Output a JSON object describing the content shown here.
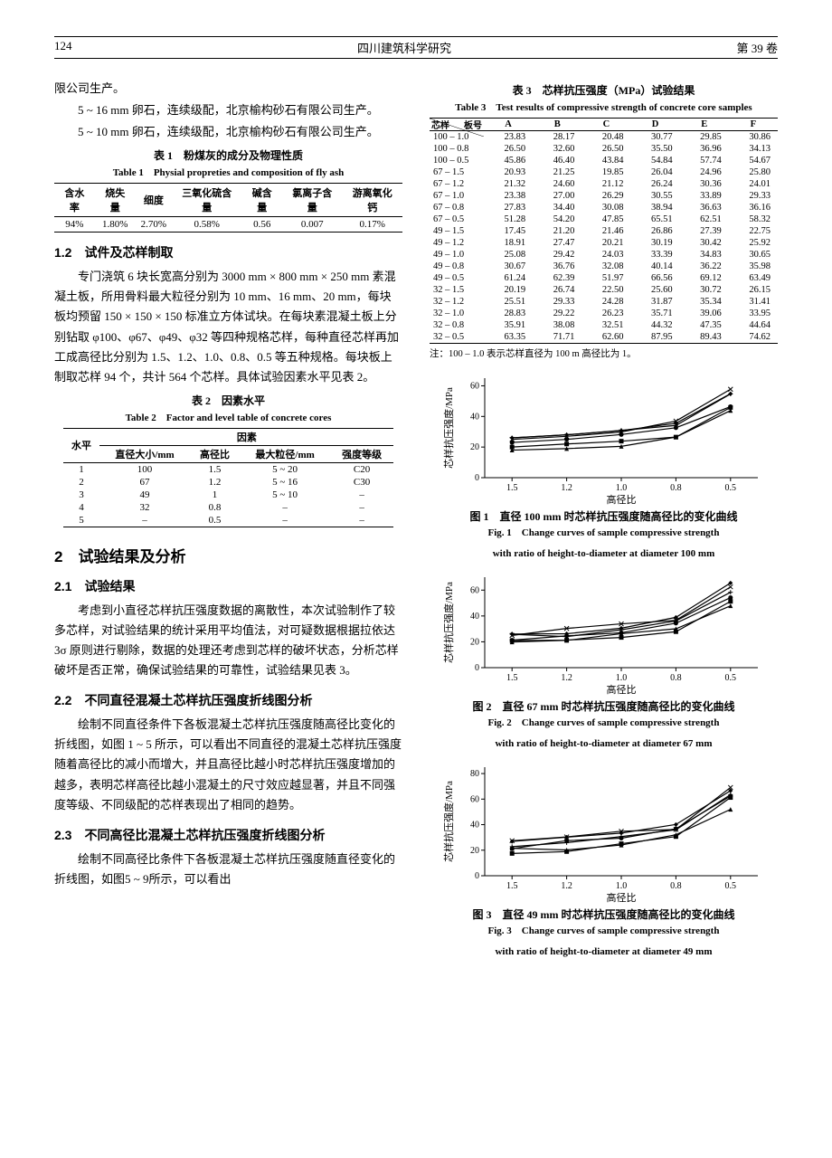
{
  "header": {
    "page_no": "124",
    "journal": "四川建筑科学研究",
    "volume": "第 39 卷"
  },
  "left": {
    "p1": "限公司生产。",
    "p2": "5 ~ 16 mm 卵石，连续级配，北京榆构砂石有限公司生产。",
    "p3": "5 ~ 10 mm 卵石，连续级配，北京榆构砂石有限公司生产。",
    "tbl1": {
      "caption_cn": "表 1　粉煤灰的成分及物理性质",
      "caption_en": "Table 1　Physial propreties and composition of fly ash",
      "headers": [
        "含水率",
        "烧失量",
        "细度",
        "三氧化硫含量",
        "碱含量",
        "氯离子含量",
        "游离氧化钙"
      ],
      "row": [
        "94%",
        "1.80%",
        "2.70%",
        "0.58%",
        "0.56",
        "0.007",
        "0.17%"
      ]
    },
    "h12": "1.2　试件及芯样制取",
    "p4": "专门浇筑 6 块长宽高分别为 3000 mm × 800 mm × 250 mm 素混凝土板，所用骨料最大粒径分别为 10 mm、16 mm、20 mm，每块板均预留 150 × 150 × 150 标准立方体试块。在每块素混凝土板上分别钻取 φ100、φ67、φ49、φ32 等四种规格芯样，每种直径芯样再加工成高径比分别为 1.5、1.2、1.0、0.8、0.5 等五种规格。每块板上制取芯样 94 个，共计 564 个芯样。具体试验因素水平见表 2。",
    "tbl2": {
      "caption_cn": "表 2　因素水平",
      "caption_en": "Table 2　Factor and level table of concrete cores",
      "level_header": "水平",
      "factor_header": "因素",
      "cols": [
        "直径大小/mm",
        "高径比",
        "最大粒径/mm",
        "强度等级"
      ],
      "rows": [
        [
          "1",
          "100",
          "1.5",
          "5 ~ 20",
          "C20"
        ],
        [
          "2",
          "67",
          "1.2",
          "5 ~ 16",
          "C30"
        ],
        [
          "3",
          "49",
          "1",
          "5 ~ 10",
          "–"
        ],
        [
          "4",
          "32",
          "0.8",
          "–",
          "–"
        ],
        [
          "5",
          "–",
          "0.5",
          "–",
          "–"
        ]
      ]
    },
    "h2": "2　试验结果及分析",
    "h21": "2.1　试验结果",
    "p5": "考虑到小直径芯样抗压强度数据的离散性，本次试验制作了较多芯样，对试验结果的统计采用平均值法，对可疑数据根据拉依达 3σ 原则进行剔除，数据的处理还考虑到芯样的破坏状态，分析芯样破坏是否正常，确保试验结果的可靠性，试验结果见表 3。",
    "h22": "2.2　不同直径混凝土芯样抗压强度折线图分析",
    "p6": "绘制不同直径条件下各板混凝土芯样抗压强度随高径比变化的折线图，如图 1 ~ 5 所示，可以看出不同直径的混凝土芯样抗压强度随着高径比的减小而增大，并且高径比越小时芯样抗压强度增加的越多，表明芯样高径比越小混凝土的尺寸效应越显著，并且不同强度等级、不同级配的芯样表现出了相同的趋势。",
    "h23": "2.3　不同高径比混凝土芯样抗压强度折线图分析",
    "p7": "绘制不同高径比条件下各板混凝土芯样抗压强度随直径变化的折线图，如图5 ~ 9所示，可以看出"
  },
  "right": {
    "tbl3": {
      "caption_cn": "表 3　芯样抗压强度（MPa）试验结果",
      "caption_en": "Table 3　Test results of compressive strength of concrete core samples",
      "diag_row": "芯样",
      "diag_col": "板号",
      "cols": [
        "A",
        "B",
        "C",
        "D",
        "E",
        "F"
      ],
      "rows": [
        [
          "100 – 1.0",
          "23.83",
          "28.17",
          "20.48",
          "30.77",
          "29.85",
          "30.86"
        ],
        [
          "100 – 0.8",
          "26.50",
          "32.60",
          "26.50",
          "35.50",
          "36.96",
          "34.13"
        ],
        [
          "100 – 0.5",
          "45.86",
          "46.40",
          "43.84",
          "54.84",
          "57.74",
          "54.67"
        ],
        [
          "67 – 1.5",
          "20.93",
          "21.25",
          "19.85",
          "26.04",
          "24.96",
          "25.80"
        ],
        [
          "67 – 1.2",
          "21.32",
          "24.60",
          "21.12",
          "26.24",
          "30.36",
          "24.01"
        ],
        [
          "67 – 1.0",
          "23.38",
          "27.00",
          "26.29",
          "30.55",
          "33.89",
          "29.33"
        ],
        [
          "67 – 0.8",
          "27.83",
          "34.40",
          "30.08",
          "38.94",
          "36.63",
          "36.16"
        ],
        [
          "67 – 0.5",
          "51.28",
          "54.20",
          "47.85",
          "65.51",
          "62.51",
          "58.32"
        ],
        [
          "49 – 1.5",
          "17.45",
          "21.20",
          "21.46",
          "26.86",
          "27.39",
          "22.75"
        ],
        [
          "49 – 1.2",
          "18.91",
          "27.47",
          "20.21",
          "30.19",
          "30.42",
          "25.92"
        ],
        [
          "49 – 1.0",
          "25.08",
          "29.42",
          "24.03",
          "33.39",
          "34.83",
          "30.65"
        ],
        [
          "49 – 0.8",
          "30.67",
          "36.76",
          "32.08",
          "40.14",
          "36.22",
          "35.98"
        ],
        [
          "49 – 0.5",
          "61.24",
          "62.39",
          "51.97",
          "66.56",
          "69.12",
          "63.49"
        ],
        [
          "32 – 1.5",
          "20.19",
          "26.74",
          "22.50",
          "25.60",
          "30.72",
          "26.15"
        ],
        [
          "32 – 1.2",
          "25.51",
          "29.33",
          "24.28",
          "31.87",
          "35.34",
          "31.41"
        ],
        [
          "32 – 1.0",
          "28.83",
          "29.22",
          "26.23",
          "35.71",
          "39.06",
          "33.95"
        ],
        [
          "32 – 0.8",
          "35.91",
          "38.08",
          "32.51",
          "44.32",
          "47.35",
          "44.64"
        ],
        [
          "32 – 0.5",
          "63.35",
          "71.71",
          "62.60",
          "87.95",
          "89.43",
          "74.62"
        ]
      ],
      "note": "注：100 – 1.0 表示芯样直径为 100 m 高径比为 1。"
    },
    "charts": {
      "xlabels": [
        "1.5",
        "1.2",
        "1.0",
        "0.8",
        "0.5"
      ],
      "xaxis_title": "高径比",
      "yaxis_title": "芯样抗压强度/MPa",
      "axis_color": "#000000",
      "series_style": {
        "line_width": 1.2,
        "marker_size": 3,
        "colors": [
          "#000",
          "#000",
          "#000",
          "#000",
          "#000",
          "#000"
        ]
      },
      "fig1": {
        "caption_cn": "图 1　直径 100 mm 时芯样抗压强度随高径比的变化曲线",
        "caption_en1": "Fig. 1　Change curves of sample compressive strength",
        "caption_en2": "with ratio of height-to-diameter at diameter 100 mm",
        "ylim": [
          0,
          65
        ],
        "yticks": [
          0,
          20,
          40,
          60
        ],
        "series": {
          "A": [
            20,
            22,
            23.83,
            26.5,
            45.86
          ],
          "B": [
            23,
            25,
            28.17,
            32.6,
            46.4
          ],
          "C": [
            18,
            19,
            20.48,
            26.5,
            43.84
          ],
          "D": [
            26,
            28,
            30.77,
            35.5,
            54.84
          ],
          "E": [
            25,
            27,
            29.85,
            36.96,
            57.74
          ],
          "F": [
            26,
            28,
            30.86,
            34.13,
            54.67
          ]
        }
      },
      "fig2": {
        "caption_cn": "图 2　直径 67 mm 时芯样抗压强度随高径比的变化曲线",
        "caption_en1": "Fig. 2　Change curves of sample compressive strength",
        "caption_en2": "with ratio of height-to-diameter at diameter 67 mm",
        "ylim": [
          0,
          70
        ],
        "yticks": [
          0,
          20,
          40,
          60
        ],
        "series": {
          "A": [
            20.93,
            21.32,
            23.38,
            27.83,
            51.28
          ],
          "B": [
            21.25,
            24.6,
            27.0,
            34.4,
            54.2
          ],
          "C": [
            19.85,
            21.12,
            26.29,
            30.08,
            47.85
          ],
          "D": [
            26.04,
            26.24,
            30.55,
            38.94,
            65.51
          ],
          "E": [
            24.96,
            30.36,
            33.89,
            36.63,
            62.51
          ],
          "F": [
            25.8,
            24.01,
            29.33,
            36.16,
            58.32
          ]
        }
      },
      "fig3": {
        "caption_cn": "图 3　直径 49 mm 时芯样抗压强度随高径比的变化曲线",
        "caption_en1": "Fig. 3　Change curves of sample compressive strength",
        "caption_en2": "with ratio of height-to-diameter at diameter 49 mm",
        "ylim": [
          0,
          85
        ],
        "yticks": [
          0,
          20,
          40,
          60,
          80
        ],
        "series": {
          "A": [
            17.45,
            18.91,
            25.08,
            30.67,
            61.24
          ],
          "B": [
            21.2,
            27.47,
            29.42,
            36.76,
            62.39
          ],
          "C": [
            21.46,
            20.21,
            24.03,
            32.08,
            51.97
          ],
          "D": [
            26.86,
            30.19,
            33.39,
            40.14,
            66.56
          ],
          "E": [
            27.39,
            30.42,
            34.83,
            36.22,
            69.12
          ],
          "F": [
            22.75,
            25.92,
            30.65,
            35.98,
            63.49
          ]
        }
      }
    }
  }
}
